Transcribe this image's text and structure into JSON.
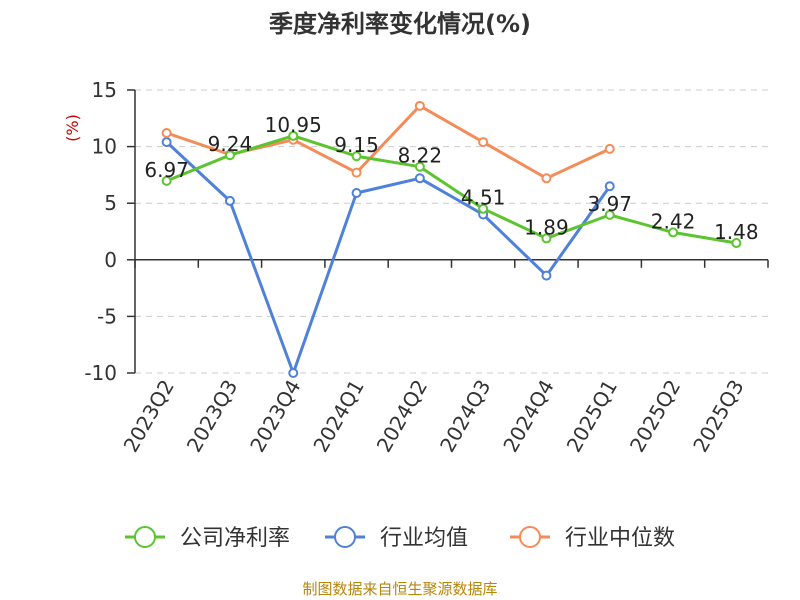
{
  "chart_data": {
    "type": "line",
    "title": "季度净利率变化情况(%)",
    "ylabel": "(%)",
    "categories": [
      "2023Q2",
      "2023Q3",
      "2023Q4",
      "2024Q1",
      "2024Q2",
      "2024Q3",
      "2024Q4",
      "2025Q1",
      "2025Q2",
      "2025Q3"
    ],
    "ylim": [
      -10,
      15
    ],
    "yticks": [
      15,
      10,
      5,
      0,
      -5,
      -10
    ],
    "yticklabels": [
      "15",
      "10",
      "5",
      "0",
      "-5",
      "-10"
    ],
    "grid": true,
    "legend_placement": "bottom",
    "series": [
      {
        "name": "公司净利率",
        "color": "#5bc42f",
        "values": [
          6.97,
          9.24,
          10.95,
          9.15,
          8.22,
          4.51,
          1.89,
          3.97,
          2.42,
          1.48
        ],
        "labels": [
          "6.97",
          "9.24",
          "10.95",
          "9.15",
          "8.22",
          "4.51",
          "1.89",
          "3.97",
          "2.42",
          "1.48"
        ]
      },
      {
        "name": "行业均值",
        "color": "#4f81db",
        "values": [
          10.4,
          5.2,
          -10.0,
          5.9,
          7.2,
          4.0,
          -1.4,
          6.5,
          null,
          null
        ]
      },
      {
        "name": "行业中位数",
        "color": "#f58b58",
        "values": [
          11.2,
          9.3,
          10.6,
          7.7,
          13.6,
          10.4,
          7.2,
          9.8,
          null,
          null
        ]
      }
    ],
    "source": "制图数据来自恒生聚源数据库"
  }
}
